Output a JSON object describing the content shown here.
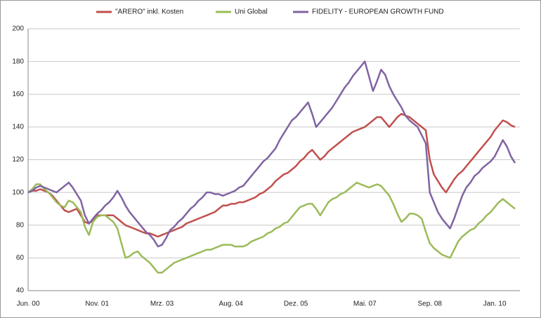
{
  "chart_data": {
    "type": "line",
    "legend": "top",
    "grid": true,
    "ylim": [
      40,
      200
    ],
    "yticks": [
      40,
      60,
      80,
      100,
      120,
      140,
      160,
      180,
      200
    ],
    "x": [
      "Jun. 00",
      null,
      null,
      null,
      null,
      null,
      null,
      null,
      null,
      null,
      null,
      null,
      null,
      null,
      null,
      null,
      null,
      "Nov. 01",
      null,
      null,
      null,
      null,
      null,
      null,
      null,
      null,
      null,
      null,
      null,
      null,
      null,
      null,
      null,
      "Mrz. 03",
      null,
      null,
      null,
      null,
      null,
      null,
      null,
      null,
      null,
      null,
      null,
      null,
      null,
      null,
      null,
      null,
      "Aug. 04",
      null,
      null,
      null,
      null,
      null,
      null,
      null,
      null,
      null,
      null,
      null,
      null,
      null,
      null,
      null,
      "Dez. 05",
      null,
      null,
      null,
      null,
      null,
      null,
      null,
      null,
      null,
      null,
      null,
      null,
      null,
      null,
      null,
      null,
      "Mai. 07",
      null,
      null,
      null,
      null,
      null,
      null,
      null,
      null,
      null,
      null,
      null,
      null,
      null,
      null,
      null,
      "Sep. 08",
      null,
      null,
      null,
      null,
      null,
      null,
      null,
      null,
      null,
      null,
      null,
      null,
      null,
      null,
      null,
      "Jan. 10",
      null,
      null,
      null,
      null,
      null
    ],
    "series": [
      {
        "name": "\"ARERO\" inkl. Kosten",
        "color": "#c0504d",
        "values": [
          100,
          101,
          101,
          102,
          101,
          100,
          98,
          95,
          92,
          89,
          88,
          89,
          90,
          86,
          82,
          81,
          83,
          86,
          86,
          86,
          86,
          86,
          84,
          82,
          80,
          79,
          78,
          77,
          76,
          75,
          75,
          74,
          73,
          74,
          75,
          76,
          77,
          78,
          79,
          81,
          82,
          83,
          84,
          85,
          86,
          87,
          88,
          90,
          92,
          92,
          93,
          93,
          94,
          94,
          95,
          96,
          97,
          99,
          100,
          102,
          104,
          107,
          109,
          111,
          112,
          114,
          116,
          119,
          121,
          124,
          126,
          123,
          120,
          122,
          125,
          127,
          129,
          131,
          133,
          135,
          137,
          138,
          139,
          140,
          142,
          144,
          146,
          146,
          143,
          140,
          143,
          146,
          148,
          147,
          146,
          144,
          142,
          140,
          138,
          120,
          111,
          107,
          103,
          100,
          104,
          108,
          111,
          113,
          116,
          119,
          122,
          125,
          128,
          131,
          134,
          138,
          141,
          144,
          143,
          141,
          140
        ]
      },
      {
        "name": "Uni Global",
        "color": "#9bbb59",
        "values": [
          100,
          102,
          105,
          105,
          102,
          100,
          97,
          94,
          92,
          91,
          95,
          94,
          91,
          88,
          79,
          74,
          82,
          85,
          86,
          86,
          84,
          82,
          78,
          69,
          60,
          61,
          63,
          64,
          61,
          59,
          57,
          54,
          51,
          51,
          53,
          55,
          57,
          58,
          59,
          60,
          61,
          62,
          63,
          64,
          65,
          65,
          66,
          67,
          68,
          68,
          68,
          67,
          67,
          67,
          68,
          70,
          71,
          72,
          73,
          75,
          76,
          78,
          79,
          81,
          82,
          85,
          88,
          91,
          92,
          93,
          93,
          90,
          86,
          90,
          94,
          96,
          97,
          99,
          100,
          102,
          104,
          106,
          105,
          104,
          103,
          104,
          105,
          104,
          101,
          98,
          93,
          87,
          82,
          84,
          87,
          87,
          86,
          84,
          76,
          69,
          66,
          64,
          62,
          61,
          60,
          65,
          70,
          73,
          75,
          77,
          78,
          81,
          83,
          86,
          88,
          91,
          94,
          96,
          94,
          92,
          90
        ]
      },
      {
        "name": "FIDELITY - EUROPEAN GROWTH FUND",
        "color": "#8064a2",
        "values": [
          100,
          101,
          103,
          104,
          103,
          102,
          101,
          100,
          102,
          104,
          106,
          103,
          99,
          95,
          86,
          81,
          84,
          87,
          89,
          92,
          94,
          97,
          101,
          97,
          92,
          88,
          85,
          82,
          79,
          76,
          74,
          71,
          67,
          68,
          72,
          77,
          79,
          82,
          84,
          87,
          90,
          92,
          95,
          97,
          100,
          100,
          99,
          99,
          98,
          99,
          100,
          101,
          103,
          104,
          107,
          110,
          113,
          116,
          119,
          121,
          124,
          127,
          132,
          136,
          140,
          144,
          146,
          149,
          152,
          155,
          148,
          140,
          143,
          146,
          149,
          152,
          156,
          160,
          164,
          167,
          171,
          174,
          177,
          180,
          171,
          162,
          168,
          175,
          172,
          165,
          160,
          156,
          152,
          147,
          144,
          142,
          140,
          135,
          130,
          100,
          94,
          88,
          84,
          81,
          78,
          84,
          91,
          98,
          103,
          106,
          110,
          112,
          115,
          117,
          119,
          122,
          127,
          132,
          128,
          122,
          118
        ]
      }
    ]
  }
}
